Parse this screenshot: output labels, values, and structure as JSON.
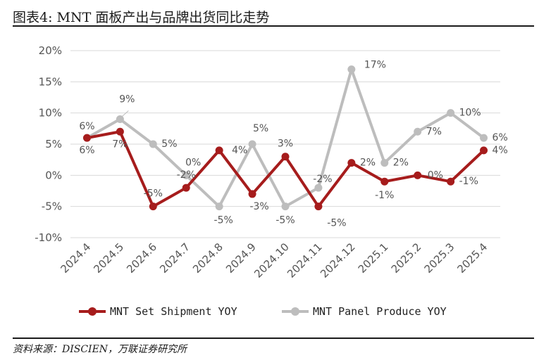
{
  "header": {
    "title": "图表4:    MNT 面板产出与品牌出货同比走势"
  },
  "footer": {
    "source": "资料来源：DISCIEN，万联证券研究所"
  },
  "chart_data": {
    "type": "line",
    "categories": [
      "2024.4",
      "2024.5",
      "2024.6",
      "2024.7",
      "2024.8",
      "2024.9",
      "2024.10",
      "2024.11",
      "2024.12",
      "2025.1",
      "2025.2",
      "2025.3",
      "2025.4"
    ],
    "y_ticks": [
      "20%",
      "15%",
      "10%",
      "5%",
      "0%",
      "-5%",
      "-10%"
    ],
    "ylim": [
      -10,
      20
    ],
    "grid": true,
    "legend_position": "bottom",
    "series": [
      {
        "name": "MNT Set Shipment YOY",
        "color": "#a61c1c",
        "values": [
          6,
          7,
          -5,
          -2,
          4,
          -3,
          3,
          -5,
          2,
          -1,
          0,
          -1,
          4
        ],
        "labels": [
          "6%",
          "7%",
          "-5%",
          "-2%",
          "4%",
          "-3%",
          "3%",
          "-5%",
          "2%",
          "-1%",
          "0%",
          "-1%",
          "4%"
        ]
      },
      {
        "name": "MNT Panel Produce YOY",
        "color": "#bdbdbd",
        "values": [
          6,
          9,
          5,
          0,
          -5,
          5,
          -5,
          -2,
          17,
          2,
          7,
          10,
          6
        ],
        "labels": [
          "6%",
          "9%",
          "5%",
          "0%",
          "-5%",
          "5%",
          "-5%",
          "-2%",
          "17%",
          "2%",
          "7%",
          "10%",
          "6%"
        ]
      }
    ]
  }
}
